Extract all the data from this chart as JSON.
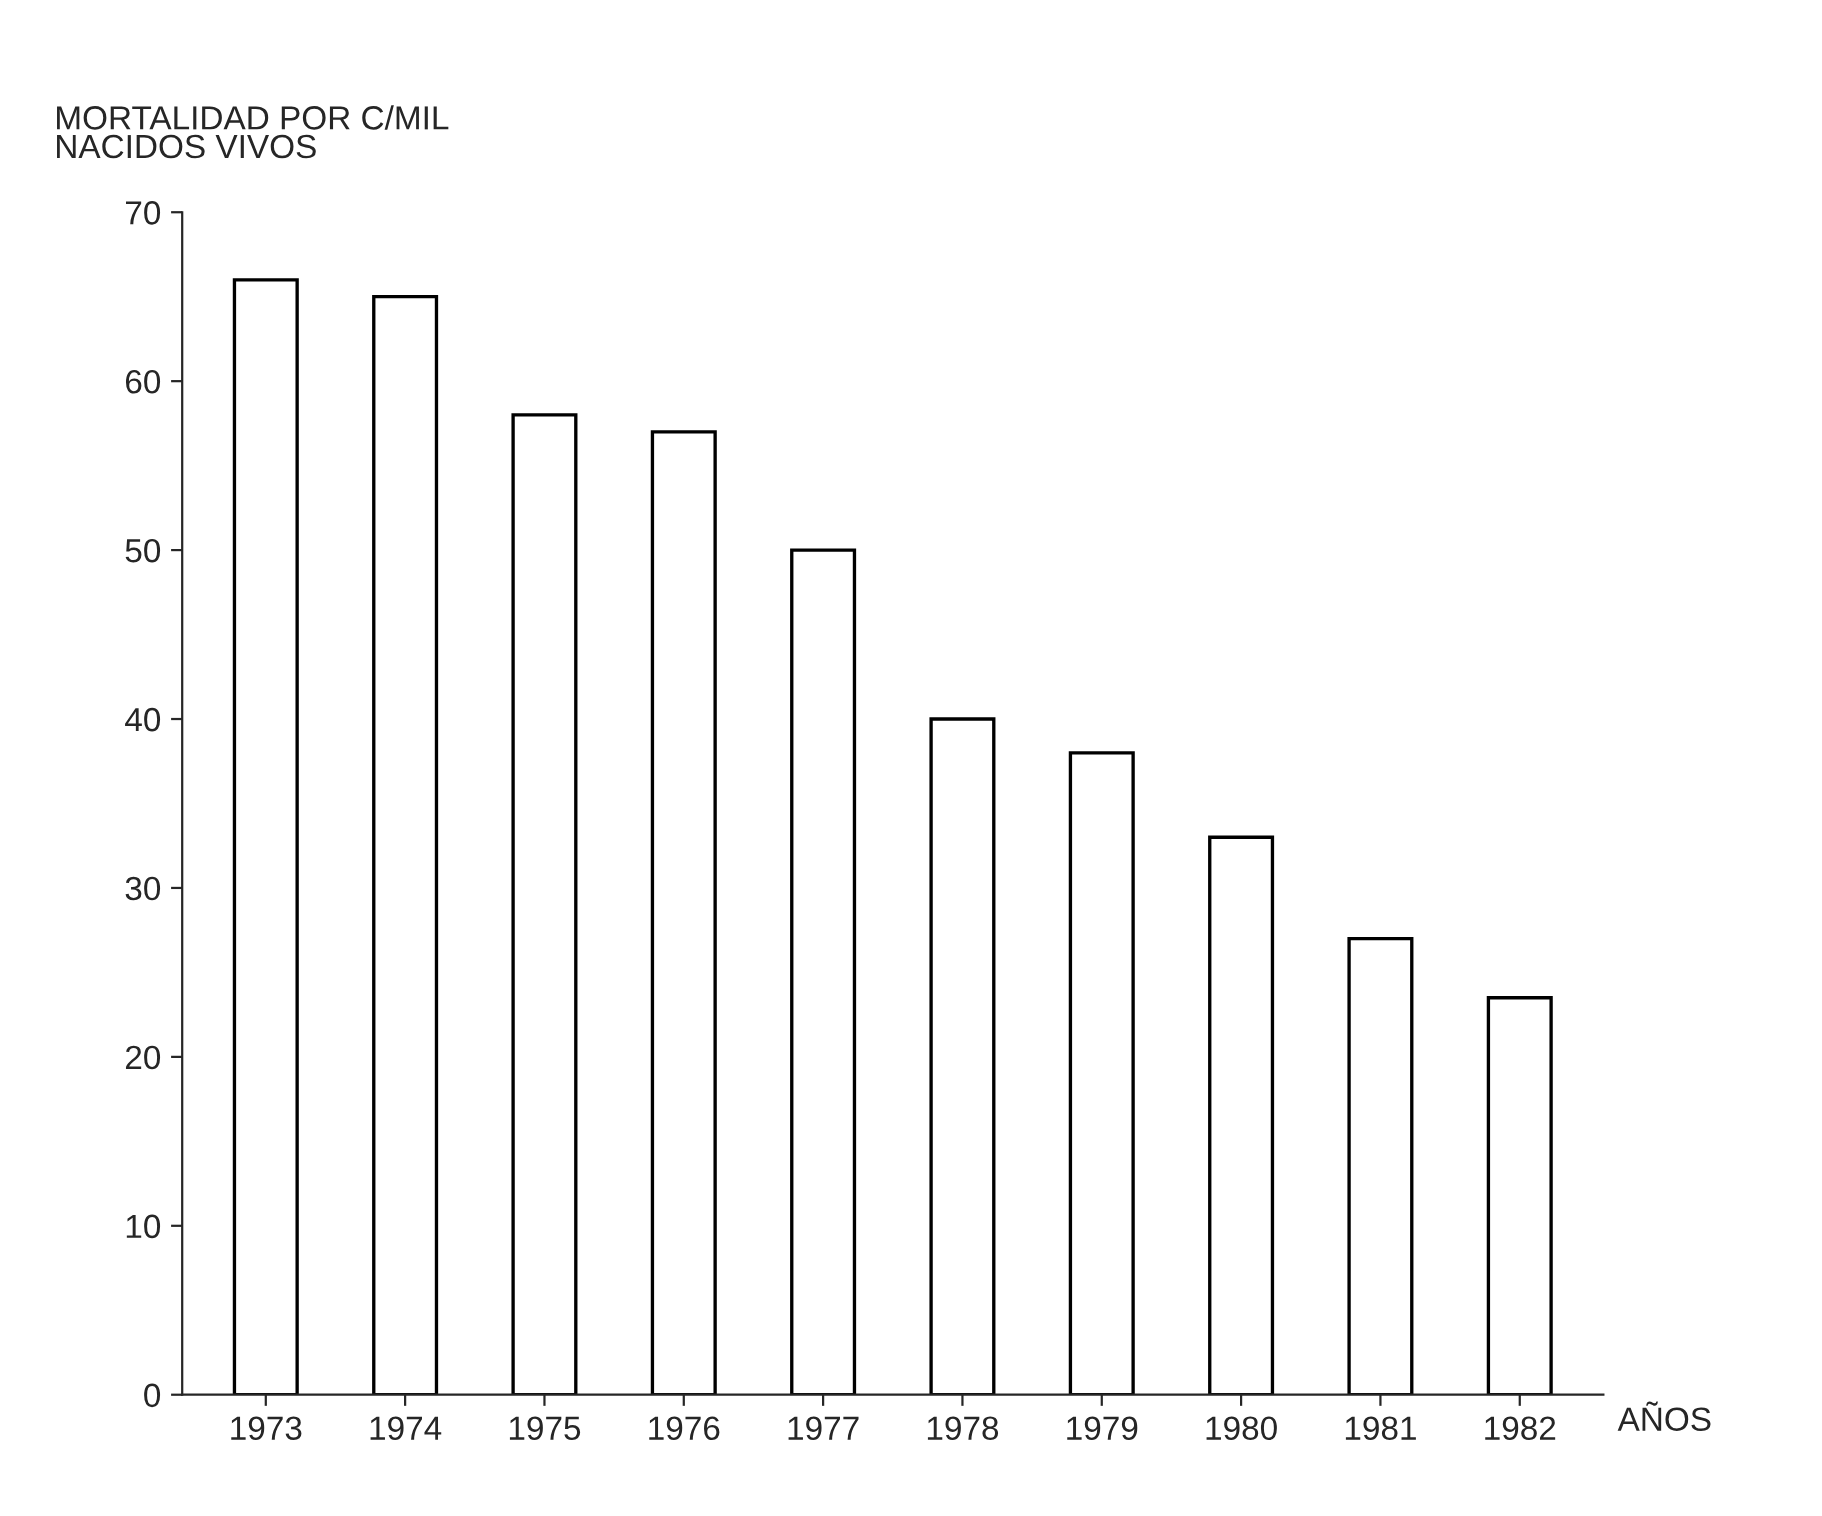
{
  "chart_data": {
    "type": "bar",
    "ylabel": "MORTALIDAD POR C/MIL\nNACIDOS VIVOS",
    "xlabel": "AÑOS",
    "categories": [
      "1973",
      "1974",
      "1975",
      "1976",
      "1977",
      "1978",
      "1979",
      "1980",
      "1981",
      "1982"
    ],
    "values": [
      66,
      65,
      58,
      57,
      50,
      40,
      38,
      33,
      27,
      23.5
    ],
    "color": "#ffffff",
    "ylim": [
      0,
      70
    ],
    "yticks": [
      0,
      10,
      20,
      30,
      40,
      50,
      60,
      70
    ],
    "grid": false
  }
}
